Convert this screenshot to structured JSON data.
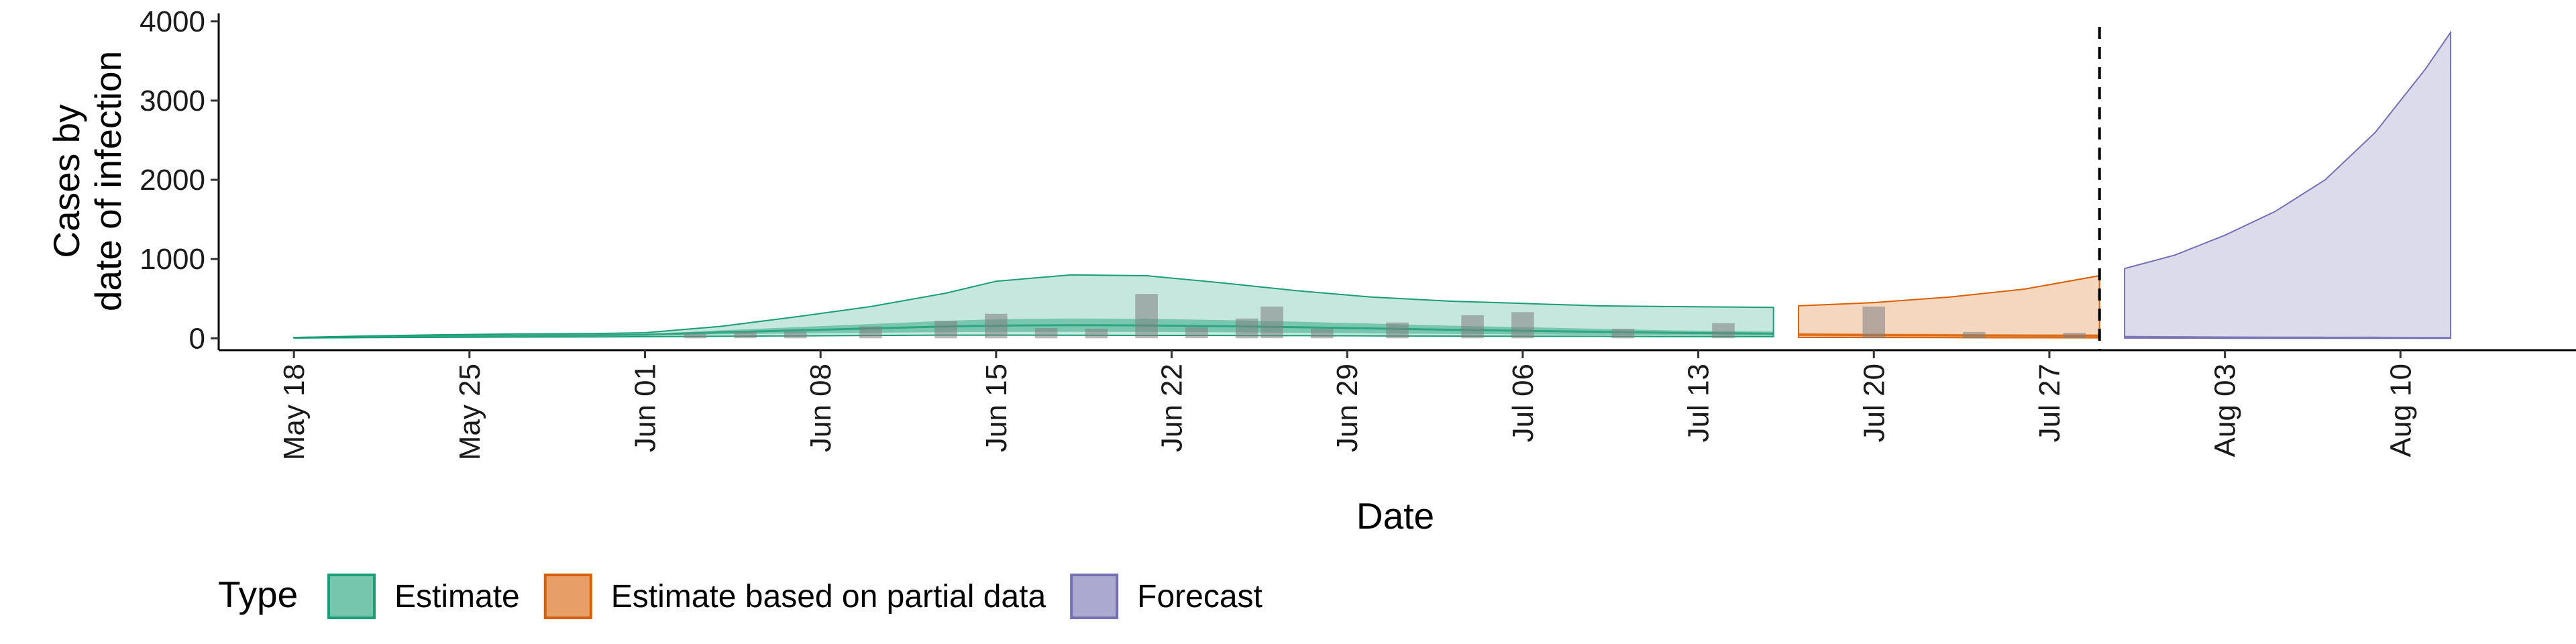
{
  "chart_data": {
    "type": "area",
    "xlabel": "Date",
    "ylabel_lines": [
      "Cases by",
      "date of infection"
    ],
    "ylim": [
      -150,
      4100
    ],
    "x_range": [
      "2020-05-15",
      "2020-08-17"
    ],
    "y_ticks": [
      0,
      1000,
      2000,
      3000,
      4000
    ],
    "x_ticks": [
      {
        "date": "2020-05-18",
        "label": "May 18"
      },
      {
        "date": "2020-05-25",
        "label": "May 25"
      },
      {
        "date": "2020-06-01",
        "label": "Jun 01"
      },
      {
        "date": "2020-06-08",
        "label": "Jun 08"
      },
      {
        "date": "2020-06-15",
        "label": "Jun 15"
      },
      {
        "date": "2020-06-22",
        "label": "Jun 22"
      },
      {
        "date": "2020-06-29",
        "label": "Jun 29"
      },
      {
        "date": "2020-07-06",
        "label": "Jul 06"
      },
      {
        "date": "2020-07-13",
        "label": "Jul 13"
      },
      {
        "date": "2020-07-20",
        "label": "Jul 20"
      },
      {
        "date": "2020-07-27",
        "label": "Jul 27"
      },
      {
        "date": "2020-08-03",
        "label": "Aug 03"
      },
      {
        "date": "2020-08-10",
        "label": "Aug 10"
      }
    ],
    "vline_date": "2020-07-29",
    "grid": false,
    "legend": {
      "title": "Type",
      "position": "bottom",
      "items": [
        {
          "label": "Estimate",
          "fill": "#1b9e77"
        },
        {
          "label": "Estimate based on partial data",
          "fill": "#d95f02"
        },
        {
          "label": "Forecast",
          "fill": "#7570b3"
        }
      ]
    },
    "series": [
      {
        "type": "Estimate",
        "color": "#1b9e77",
        "x": [
          "2020-05-18",
          "2020-05-21",
          "2020-05-24",
          "2020-05-27",
          "2020-05-30",
          "2020-06-01",
          "2020-06-04",
          "2020-06-07",
          "2020-06-10",
          "2020-06-13",
          "2020-06-15",
          "2020-06-18",
          "2020-06-21",
          "2020-06-24",
          "2020-06-27",
          "2020-06-30",
          "2020-07-03",
          "2020-07-06",
          "2020-07-09",
          "2020-07-12",
          "2020-07-16"
        ],
        "upper90": [
          10,
          30,
          45,
          55,
          60,
          70,
          150,
          270,
          400,
          570,
          720,
          800,
          790,
          700,
          600,
          520,
          470,
          440,
          410,
          400,
          390
        ],
        "lower90": [
          5,
          8,
          12,
          15,
          18,
          20,
          25,
          30,
          35,
          40,
          40,
          38,
          36,
          35,
          33,
          30,
          28,
          26,
          24,
          22,
          20
        ],
        "upper50": [
          8,
          20,
          35,
          42,
          48,
          55,
          100,
          140,
          180,
          220,
          240,
          250,
          245,
          230,
          210,
          185,
          160,
          140,
          120,
          100,
          85
        ],
        "lower50": [
          6,
          12,
          20,
          26,
          30,
          35,
          50,
          60,
          70,
          78,
          80,
          82,
          80,
          76,
          70,
          62,
          56,
          50,
          44,
          38,
          32
        ],
        "median": [
          7,
          16,
          27,
          34,
          39,
          45,
          75,
          100,
          125,
          149,
          160,
          166,
          162,
          153,
          140,
          124,
          108,
          95,
          82,
          69,
          58
        ]
      },
      {
        "type": "Estimate based on partial data",
        "color": "#d95f02",
        "x": [
          "2020-07-17",
          "2020-07-20",
          "2020-07-23",
          "2020-07-26",
          "2020-07-29"
        ],
        "upper90": [
          410,
          450,
          520,
          620,
          790
        ],
        "lower90": [
          12,
          10,
          8,
          7,
          6
        ],
        "upper50": [
          70,
          60,
          55,
          50,
          50
        ],
        "lower50": [
          25,
          22,
          20,
          18,
          16
        ],
        "median": [
          45,
          40,
          37,
          34,
          33
        ]
      },
      {
        "type": "Forecast",
        "color": "#7570b3",
        "x": [
          "2020-07-30",
          "2020-08-01",
          "2020-08-03",
          "2020-08-05",
          "2020-08-07",
          "2020-08-09",
          "2020-08-10",
          "2020-08-11",
          "2020-08-12"
        ],
        "upper90": [
          880,
          1050,
          1300,
          1600,
          2000,
          2600,
          3000,
          3400,
          3860
        ],
        "lower90": [
          3,
          2,
          1,
          1,
          1,
          1,
          1,
          1,
          1
        ],
        "upper50": [
          30,
          25,
          20,
          18,
          15,
          12,
          10,
          10,
          10
        ],
        "lower50": [
          8,
          6,
          5,
          4,
          3,
          3,
          2,
          2,
          2
        ],
        "median": [
          18,
          15,
          12,
          10,
          9,
          8,
          7,
          6,
          6
        ]
      }
    ],
    "reported_cases": {
      "x": [
        "2020-06-03",
        "2020-06-05",
        "2020-06-07",
        "2020-06-10",
        "2020-06-13",
        "2020-06-15",
        "2020-06-17",
        "2020-06-19",
        "2020-06-21",
        "2020-06-23",
        "2020-06-25",
        "2020-06-26",
        "2020-06-28",
        "2020-07-01",
        "2020-07-04",
        "2020-07-06",
        "2020-07-10",
        "2020-07-14",
        "2020-07-20",
        "2020-07-24",
        "2020-07-28"
      ],
      "values": [
        60,
        80,
        90,
        150,
        220,
        310,
        130,
        120,
        560,
        140,
        250,
        400,
        120,
        200,
        290,
        330,
        120,
        190,
        400,
        80,
        70
      ]
    }
  }
}
